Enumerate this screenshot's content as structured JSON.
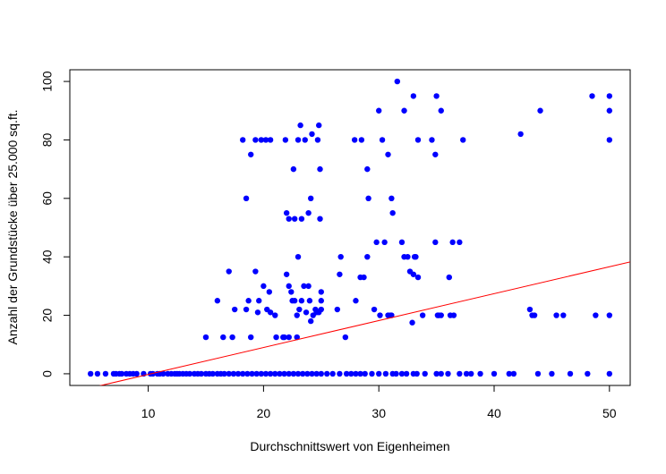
{
  "chart_data": {
    "type": "scatter",
    "title": "",
    "xlabel": "Durchschnittswert von Eigenheimen",
    "ylabel": "Anzahl der Grundstücke über 25.000 sq.ft.",
    "xlim": [
      3.2,
      51.8
    ],
    "ylim": [
      -4,
      104
    ],
    "x_ticks": [
      10,
      20,
      30,
      40,
      50
    ],
    "y_ticks": [
      0,
      20,
      40,
      60,
      80,
      100
    ],
    "grid": false,
    "legend": "none",
    "point_color": "#0000ff",
    "line_color": "#ff0000",
    "series": [
      {
        "type": "scatter",
        "points": [
          [
            5,
            0
          ],
          [
            5.6,
            0
          ],
          [
            6.3,
            0
          ],
          [
            7.0,
            0
          ],
          [
            7.2,
            0
          ],
          [
            7.5,
            0
          ],
          [
            7.7,
            0
          ],
          [
            8.1,
            0
          ],
          [
            8.4,
            0
          ],
          [
            8.7,
            0
          ],
          [
            9.0,
            0
          ],
          [
            9.6,
            0
          ],
          [
            10.2,
            0
          ],
          [
            10.4,
            0
          ],
          [
            10.8,
            0
          ],
          [
            11.0,
            0
          ],
          [
            11.3,
            0
          ],
          [
            11.7,
            0
          ],
          [
            12.0,
            0
          ],
          [
            12.3,
            0
          ],
          [
            12.5,
            0
          ],
          [
            12.7,
            0
          ],
          [
            13.0,
            0
          ],
          [
            13.3,
            0
          ],
          [
            13.6,
            0
          ],
          [
            14.0,
            0
          ],
          [
            14.3,
            0
          ],
          [
            14.6,
            0
          ],
          [
            15.0,
            0
          ],
          [
            15.3,
            0
          ],
          [
            15.6,
            0
          ],
          [
            16.0,
            0
          ],
          [
            16.3,
            0
          ],
          [
            16.6,
            0
          ],
          [
            17.0,
            0
          ],
          [
            17.4,
            0
          ],
          [
            17.8,
            0
          ],
          [
            18.2,
            0
          ],
          [
            18.6,
            0
          ],
          [
            19.0,
            0
          ],
          [
            19.4,
            0
          ],
          [
            19.8,
            0
          ],
          [
            20.2,
            0
          ],
          [
            20.6,
            0
          ],
          [
            21.0,
            0
          ],
          [
            21.4,
            0
          ],
          [
            21.8,
            0
          ],
          [
            22.2,
            0
          ],
          [
            22.6,
            0
          ],
          [
            23.0,
            0
          ],
          [
            23.4,
            0
          ],
          [
            23.8,
            0
          ],
          [
            24.2,
            0
          ],
          [
            24.6,
            0
          ],
          [
            25.0,
            0
          ],
          [
            25.5,
            0
          ],
          [
            26.0,
            0
          ],
          [
            26.6,
            0
          ],
          [
            27.2,
            0
          ],
          [
            27.6,
            0
          ],
          [
            28.0,
            0
          ],
          [
            28.4,
            0
          ],
          [
            28.8,
            0
          ],
          [
            29.4,
            0
          ],
          [
            30.0,
            0
          ],
          [
            30.6,
            0
          ],
          [
            31.2,
            0
          ],
          [
            31.5,
            0
          ],
          [
            32.0,
            0
          ],
          [
            32.4,
            0
          ],
          [
            33.0,
            0
          ],
          [
            33.3,
            0
          ],
          [
            34.0,
            0
          ],
          [
            35.0,
            0
          ],
          [
            35.4,
            0
          ],
          [
            36.0,
            0
          ],
          [
            37.0,
            0
          ],
          [
            37.6,
            0
          ],
          [
            38.0,
            0
          ],
          [
            38.8,
            0
          ],
          [
            40.0,
            0
          ],
          [
            41.3,
            0
          ],
          [
            41.7,
            0
          ],
          [
            43.8,
            0
          ],
          [
            45.0,
            0
          ],
          [
            46.6,
            0
          ],
          [
            48.1,
            0
          ],
          [
            50.0,
            0
          ],
          [
            15.0,
            12.5
          ],
          [
            16.5,
            12.5
          ],
          [
            17.3,
            12.5
          ],
          [
            18.9,
            12.5
          ],
          [
            21.1,
            12.5
          ],
          [
            21.8,
            12.5
          ],
          [
            22.2,
            12.5
          ],
          [
            22.9,
            12.5
          ],
          [
            27.1,
            12.5
          ],
          [
            16.0,
            25
          ],
          [
            17.0,
            35
          ],
          [
            17.5,
            22
          ],
          [
            18.5,
            22
          ],
          [
            18.7,
            25
          ],
          [
            19.3,
            35
          ],
          [
            19.5,
            21
          ],
          [
            19.6,
            25
          ],
          [
            20.0,
            30
          ],
          [
            20.3,
            22
          ],
          [
            20.5,
            28
          ],
          [
            20.6,
            21
          ],
          [
            21.0,
            20
          ],
          [
            21.7,
            12.5
          ],
          [
            22.0,
            34
          ],
          [
            22.2,
            30
          ],
          [
            22.4,
            28
          ],
          [
            22.5,
            25
          ],
          [
            22.7,
            25
          ],
          [
            22.9,
            20
          ],
          [
            23.0,
            40
          ],
          [
            23.1,
            22
          ],
          [
            23.3,
            25
          ],
          [
            23.5,
            30
          ],
          [
            23.7,
            21
          ],
          [
            23.9,
            30
          ],
          [
            24.0,
            25
          ],
          [
            24.1,
            18
          ],
          [
            24.3,
            20
          ],
          [
            24.5,
            22
          ],
          [
            24.6,
            21
          ],
          [
            24.8,
            21
          ],
          [
            25.0,
            28
          ],
          [
            25.0,
            25
          ],
          [
            25.0,
            22
          ],
          [
            26.4,
            22
          ],
          [
            26.6,
            34
          ],
          [
            26.7,
            40
          ],
          [
            28.0,
            25
          ],
          [
            28.4,
            33
          ],
          [
            28.7,
            33
          ],
          [
            29.0,
            40
          ],
          [
            29.6,
            22
          ],
          [
            29.8,
            45
          ],
          [
            30.1,
            20
          ],
          [
            30.5,
            45
          ],
          [
            30.8,
            20
          ],
          [
            31.0,
            20
          ],
          [
            31.1,
            20
          ],
          [
            32.0,
            45
          ],
          [
            32.2,
            40
          ],
          [
            32.5,
            40
          ],
          [
            32.7,
            35
          ],
          [
            32.9,
            17.5
          ],
          [
            33.0,
            34
          ],
          [
            33.1,
            40
          ],
          [
            33.2,
            40
          ],
          [
            33.4,
            33
          ],
          [
            33.8,
            20
          ],
          [
            34.9,
            45
          ],
          [
            35.1,
            20
          ],
          [
            35.2,
            20
          ],
          [
            35.4,
            20
          ],
          [
            36.1,
            33
          ],
          [
            36.2,
            20
          ],
          [
            36.4,
            45
          ],
          [
            36.5,
            20
          ],
          [
            37.0,
            45
          ],
          [
            43.1,
            22
          ],
          [
            43.3,
            20
          ],
          [
            43.5,
            20
          ],
          [
            45.4,
            20
          ],
          [
            46.0,
            20
          ],
          [
            48.8,
            20
          ],
          [
            50.0,
            20
          ],
          [
            18.2,
            80
          ],
          [
            18.5,
            60
          ],
          [
            18.9,
            75
          ],
          [
            19.3,
            80
          ],
          [
            19.8,
            80
          ],
          [
            20.2,
            80
          ],
          [
            20.6,
            80
          ],
          [
            21.9,
            80
          ],
          [
            22.0,
            55
          ],
          [
            22.2,
            53
          ],
          [
            22.6,
            70
          ],
          [
            22.7,
            53
          ],
          [
            23.0,
            80
          ],
          [
            23.2,
            85
          ],
          [
            23.3,
            53
          ],
          [
            23.6,
            80
          ],
          [
            23.9,
            55
          ],
          [
            24.1,
            60
          ],
          [
            24.2,
            82
          ],
          [
            24.7,
            80
          ],
          [
            24.8,
            85
          ],
          [
            24.9,
            70
          ],
          [
            24.9,
            53
          ],
          [
            27.9,
            80
          ],
          [
            28.5,
            80
          ],
          [
            29.0,
            70
          ],
          [
            29.1,
            60
          ],
          [
            30.0,
            90
          ],
          [
            30.3,
            80
          ],
          [
            30.8,
            75
          ],
          [
            31.1,
            60
          ],
          [
            31.2,
            55
          ],
          [
            31.6,
            100
          ],
          [
            32.2,
            90
          ],
          [
            33.0,
            95
          ],
          [
            33.4,
            80
          ],
          [
            34.6,
            80
          ],
          [
            35.0,
            95
          ],
          [
            34.9,
            75
          ],
          [
            35.4,
            90
          ],
          [
            37.3,
            80
          ],
          [
            42.3,
            82
          ],
          [
            44.0,
            90
          ],
          [
            48.5,
            95
          ],
          [
            50.0,
            95
          ],
          [
            50.0,
            90
          ],
          [
            50.0,
            80
          ]
        ]
      },
      {
        "type": "line",
        "name": "",
        "x": [
          5,
          51.8
        ],
        "y": [
          -4.83,
          38.28
        ]
      }
    ]
  }
}
